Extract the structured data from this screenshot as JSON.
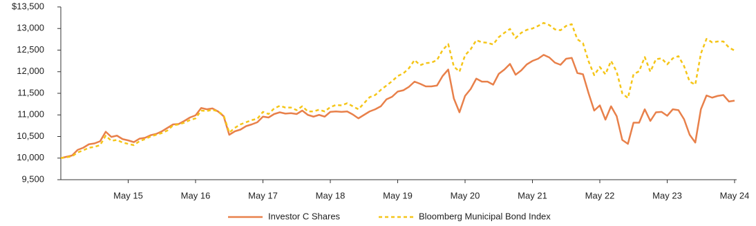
{
  "chart_data": {
    "type": "line",
    "categories": [
      null,
      null,
      null,
      null,
      null,
      null,
      null,
      null,
      null,
      null,
      null,
      null,
      "May 15",
      null,
      null,
      null,
      null,
      null,
      null,
      null,
      null,
      null,
      null,
      null,
      "May 16",
      null,
      null,
      null,
      null,
      null,
      null,
      null,
      null,
      null,
      null,
      null,
      "May 17",
      null,
      null,
      null,
      null,
      null,
      null,
      null,
      null,
      null,
      null,
      null,
      "May 18",
      null,
      null,
      null,
      null,
      null,
      null,
      null,
      null,
      null,
      null,
      null,
      "May 19",
      null,
      null,
      null,
      null,
      null,
      null,
      null,
      null,
      null,
      null,
      null,
      "May 20",
      null,
      null,
      null,
      null,
      null,
      null,
      null,
      null,
      null,
      null,
      null,
      "May 21",
      null,
      null,
      null,
      null,
      null,
      null,
      null,
      null,
      null,
      null,
      null,
      "May 22",
      null,
      null,
      null,
      null,
      null,
      null,
      null,
      null,
      null,
      null,
      null,
      "May 23",
      null,
      null,
      null,
      null,
      null,
      null,
      null,
      null,
      null,
      null,
      null,
      "May 24"
    ],
    "series": [
      {
        "name": "Investor C Shares",
        "color": "#e8804a",
        "dashed": false,
        "values": [
          10000,
          10030,
          10060,
          10190,
          10240,
          10320,
          10340,
          10390,
          10610,
          10490,
          10520,
          10440,
          10410,
          10370,
          10450,
          10470,
          10530,
          10560,
          10620,
          10700,
          10780,
          10790,
          10860,
          10940,
          10990,
          11160,
          11130,
          11150,
          11080,
          10970,
          10540,
          10620,
          10660,
          10740,
          10780,
          10830,
          10960,
          10940,
          11020,
          11060,
          11030,
          11040,
          11020,
          11100,
          11000,
          10960,
          11000,
          10960,
          11070,
          11080,
          11070,
          11080,
          11010,
          10920,
          11000,
          11080,
          11130,
          11200,
          11360,
          11420,
          11540,
          11570,
          11650,
          11770,
          11720,
          11660,
          11660,
          11680,
          11900,
          12050,
          11380,
          11060,
          11440,
          11600,
          11840,
          11770,
          11770,
          11700,
          11950,
          12050,
          12180,
          11930,
          12030,
          12170,
          12250,
          12300,
          12390,
          12330,
          12210,
          12160,
          12300,
          12320,
          11970,
          11940,
          11500,
          11100,
          11220,
          10890,
          11200,
          10970,
          10420,
          10330,
          10820,
          10820,
          11130,
          10860,
          11060,
          11070,
          10980,
          11130,
          11110,
          10900,
          10540,
          10360,
          11130,
          11450,
          11400,
          11440,
          11460,
          11310,
          11330
        ]
      },
      {
        "name": "Bloomberg Municipal Bond Index",
        "color": "#f5c518",
        "dashed": true,
        "values": [
          10000,
          10020,
          10040,
          10130,
          10180,
          10240,
          10260,
          10300,
          10520,
          10400,
          10420,
          10360,
          10330,
          10300,
          10390,
          10440,
          10500,
          10540,
          10580,
          10640,
          10760,
          10780,
          10820,
          10880,
          10920,
          11100,
          11090,
          11120,
          11080,
          10990,
          10590,
          10700,
          10780,
          10830,
          10880,
          10910,
          11070,
          11020,
          11150,
          11210,
          11170,
          11170,
          11110,
          11200,
          11080,
          11080,
          11120,
          11080,
          11180,
          11230,
          11220,
          11270,
          11200,
          11130,
          11270,
          11410,
          11460,
          11580,
          11680,
          11780,
          11900,
          11960,
          12080,
          12270,
          12150,
          12200,
          12210,
          12270,
          12500,
          12640,
          12120,
          12000,
          12380,
          12520,
          12730,
          12680,
          12670,
          12630,
          12800,
          12900,
          12990,
          12780,
          12900,
          12970,
          13000,
          13060,
          13130,
          13080,
          12980,
          12960,
          13060,
          13100,
          12750,
          12660,
          12240,
          11920,
          12110,
          11940,
          12250,
          12000,
          11500,
          11390,
          11940,
          12010,
          12340,
          12000,
          12290,
          12310,
          12170,
          12310,
          12360,
          12130,
          11770,
          11700,
          12420,
          12760,
          12680,
          12700,
          12700,
          12560,
          12490
        ]
      }
    ],
    "ylim": [
      9500,
      13500
    ],
    "yticks": [
      {
        "value": 9500,
        "label": "9,500"
      },
      {
        "value": 10000,
        "label": "10,000"
      },
      {
        "value": 10500,
        "label": "10,500"
      },
      {
        "value": 11000,
        "label": "11,000"
      },
      {
        "value": 11500,
        "label": "11,500"
      },
      {
        "value": 12000,
        "label": "12,000"
      },
      {
        "value": 12500,
        "label": "12,500"
      },
      {
        "value": 13000,
        "label": "13,000"
      },
      {
        "value": 13500,
        "label": "$13,500"
      }
    ],
    "grid": false,
    "legend": "bottom"
  }
}
